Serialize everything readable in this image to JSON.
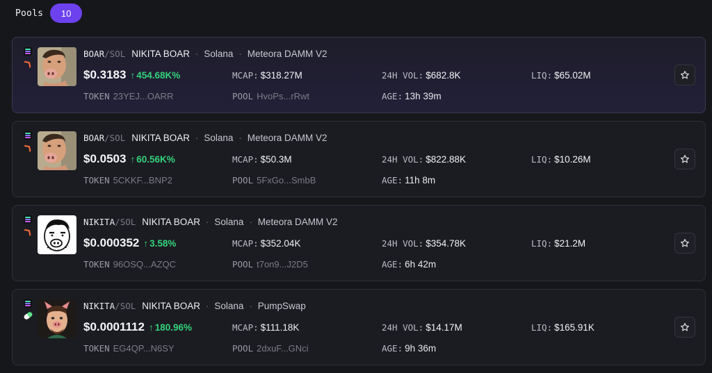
{
  "header": {
    "title": "Pools",
    "count": "10"
  },
  "pools": [
    {
      "pair_base": "BOAR",
      "pair_sep": "/",
      "pair_quote": "SOL",
      "token_name": "NIKITA BOAR",
      "chain": "Solana",
      "dex": "Meteora DAMM V2",
      "price": "$0.3183",
      "change": "454.68K%",
      "mcap_label": "MCAP:",
      "mcap": "$318.27M",
      "vol_label": "24H VOL:",
      "vol": "$682.8K",
      "liq_label": "LIQ:",
      "liq": "$65.02M",
      "token_label": "TOKEN",
      "token_addr": "23YEJ...OARR",
      "pool_label": "POOL",
      "pool_addr": "HvoPs...rRwt",
      "age_label": "AGE:",
      "age": "13h 39m",
      "avatar": "pig-face-portrait",
      "dex_icon": "meteora-icon",
      "highlighted": true
    },
    {
      "pair_base": "BOAR",
      "pair_sep": "/",
      "pair_quote": "SOL",
      "token_name": "NIKITA BOAR",
      "chain": "Solana",
      "dex": "Meteora DAMM V2",
      "price": "$0.0503",
      "change": "60.56K%",
      "mcap_label": "MCAP:",
      "mcap": "$50.3M",
      "vol_label": "24H VOL:",
      "vol": "$822.88K",
      "liq_label": "LIQ:",
      "liq": "$10.26M",
      "token_label": "TOKEN",
      "token_addr": "5CKKF...BNP2",
      "pool_label": "POOL",
      "pool_addr": "5FxGo...SmbB",
      "age_label": "AGE:",
      "age": "11h 8m",
      "avatar": "pig-face-portrait",
      "dex_icon": "meteora-icon",
      "highlighted": false
    },
    {
      "pair_base": "NIKITA",
      "pair_sep": "/",
      "pair_quote": "SOL",
      "token_name": "NIKITA BOAR",
      "chain": "Solana",
      "dex": "Meteora DAMM V2",
      "price": "$0.000352",
      "change": "3.58%",
      "mcap_label": "MCAP:",
      "mcap": "$352.04K",
      "vol_label": "24H VOL:",
      "vol": "$354.78K",
      "liq_label": "LIQ:",
      "liq": "$21.2M",
      "token_label": "TOKEN",
      "token_addr": "96OSQ...AZQC",
      "pool_label": "POOL",
      "pool_addr": "t7on9...J2D5",
      "age_label": "AGE:",
      "age": "6h 42m",
      "avatar": "pig-sketch-drawing",
      "dex_icon": "meteora-icon",
      "highlighted": false
    },
    {
      "pair_base": "NIKITA",
      "pair_sep": "/",
      "pair_quote": "SOL",
      "token_name": "NIKITA BOAR",
      "chain": "Solana",
      "dex": "PumpSwap",
      "price": "$0.0001112",
      "change": "180.96%",
      "mcap_label": "MCAP:",
      "mcap": "$111.18K",
      "vol_label": "24H VOL:",
      "vol": "$14.17M",
      "liq_label": "LIQ:",
      "liq": "$165.91K",
      "token_label": "TOKEN",
      "token_addr": "EG4QP...N6SY",
      "pool_label": "POOL",
      "pool_addr": "2dxuF...GNci",
      "age_label": "AGE:",
      "age": "9h 36m",
      "avatar": "pig-cartoon-avatar",
      "dex_icon": "pumpswap-icon",
      "highlighted": false
    }
  ],
  "colors": {
    "accent": "#6d42ee",
    "positive": "#34d27c",
    "background": "#16171b",
    "card": "#1b1c21"
  }
}
